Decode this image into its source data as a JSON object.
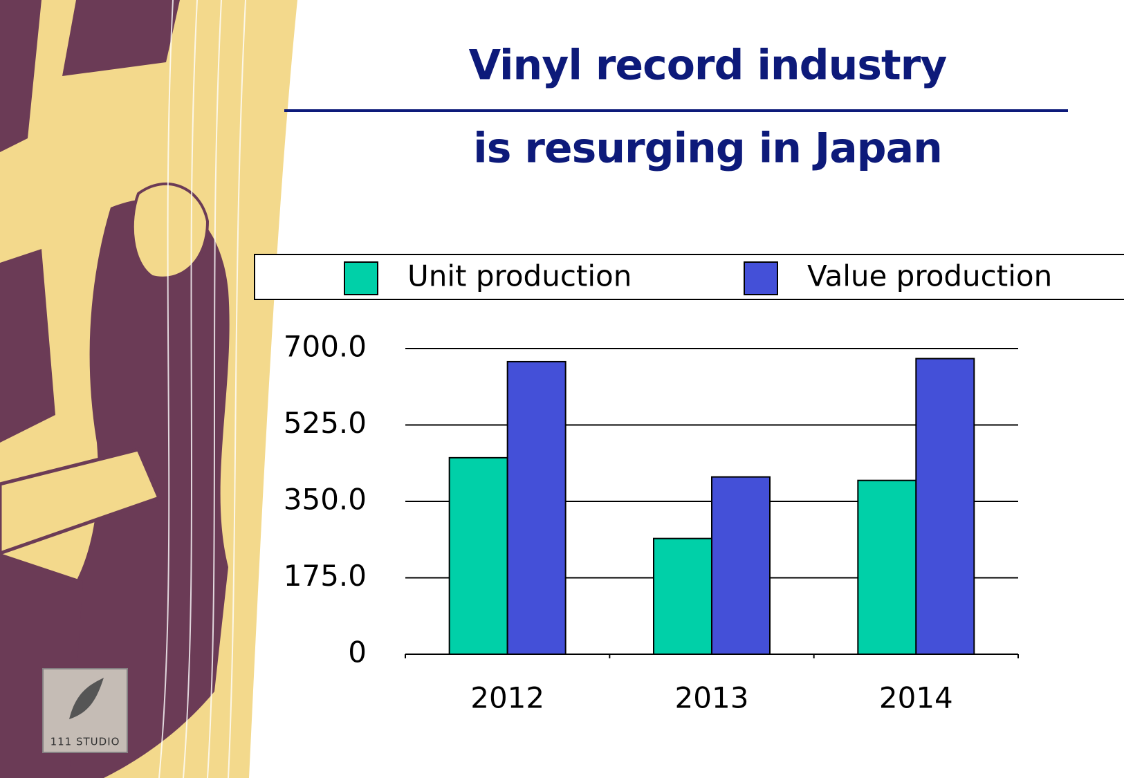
{
  "watermark": "111 STUDIO",
  "chart_data": {
    "type": "bar",
    "title": [
      "Vinyl record industry",
      "is resurging in Japan"
    ],
    "categories": [
      "2012",
      "2013",
      "2014"
    ],
    "series": [
      {
        "name": "Unit production",
        "color": "#00d0a8",
        "values": [
          450,
          265,
          398
        ]
      },
      {
        "name": "Value production",
        "color": "#4450d8",
        "values": [
          670,
          406,
          677
        ]
      }
    ],
    "ylim": [
      0,
      700
    ],
    "yticks": [
      0,
      {
        "value": 175,
        "label": "175.0"
      },
      {
        "value": 350,
        "label": "350.0"
      },
      {
        "value": 525,
        "label": "525.0"
      },
      {
        "value": 700,
        "label": "700.0"
      }
    ],
    "grid": true,
    "legend": "top"
  }
}
